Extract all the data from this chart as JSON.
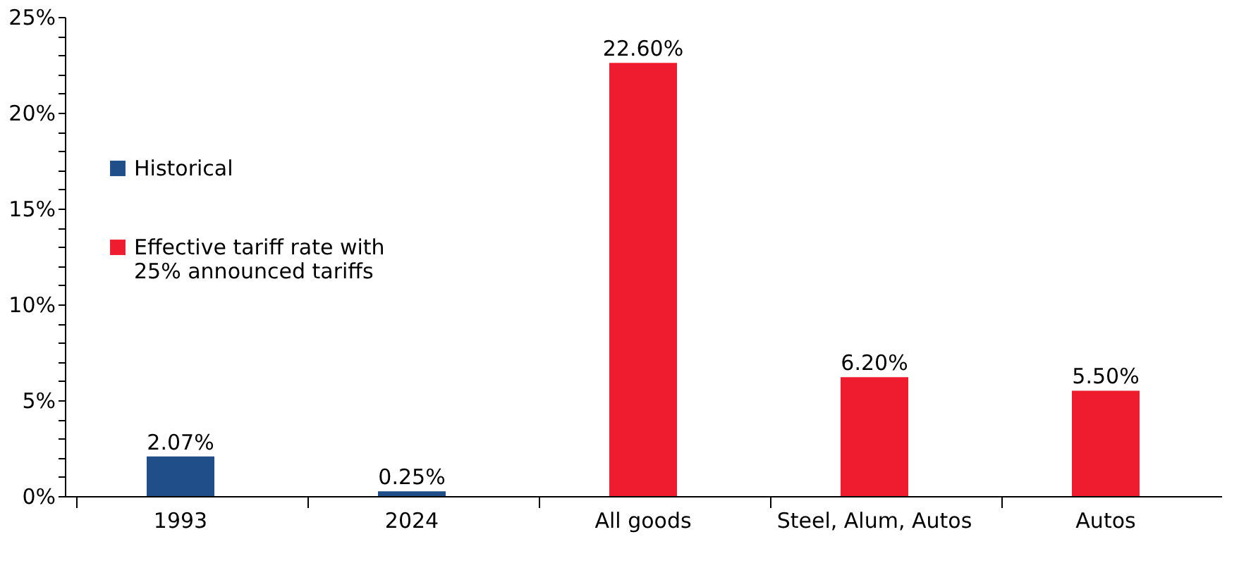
{
  "chart_data": {
    "type": "bar",
    "categories": [
      "1993",
      "2024",
      "All goods",
      "Steel, Alum, Autos",
      "Autos"
    ],
    "series": [
      {
        "name": "Historical",
        "color": "#1f4e89",
        "values": [
          2.07,
          0.25,
          null,
          null,
          null
        ],
        "value_labels": [
          "2.07%",
          "0.25%",
          null,
          null,
          null
        ]
      },
      {
        "name": "Effective tariff rate with 25% announced tariffs",
        "color": "#ee1c2e",
        "values": [
          null,
          null,
          22.6,
          6.2,
          5.5
        ],
        "value_labels": [
          null,
          null,
          "22.60%",
          "6.20%",
          "5.50%"
        ]
      }
    ],
    "ylim": [
      0,
      25
    ],
    "yticks": [
      {
        "value": 0,
        "label": "0%"
      },
      {
        "value": 1,
        "label": null
      },
      {
        "value": 2,
        "label": null
      },
      {
        "value": 3,
        "label": null
      },
      {
        "value": 4,
        "label": null
      },
      {
        "value": 5,
        "label": "5%"
      },
      {
        "value": 6,
        "label": null
      },
      {
        "value": 7,
        "label": null
      },
      {
        "value": 8,
        "label": null
      },
      {
        "value": 9,
        "label": null
      },
      {
        "value": 10,
        "label": "10%"
      },
      {
        "value": 11,
        "label": null
      },
      {
        "value": 12,
        "label": null
      },
      {
        "value": 13,
        "label": null
      },
      {
        "value": 14,
        "label": null
      },
      {
        "value": 15,
        "label": "15%"
      },
      {
        "value": 16,
        "label": null
      },
      {
        "value": 17,
        "label": null
      },
      {
        "value": 18,
        "label": null
      },
      {
        "value": 19,
        "label": null
      },
      {
        "value": 20,
        "label": "20%"
      },
      {
        "value": 21,
        "label": null
      },
      {
        "value": 22,
        "label": null
      },
      {
        "value": 23,
        "label": null
      },
      {
        "value": 24,
        "label": null
      },
      {
        "value": 25,
        "label": "25%"
      }
    ],
    "grid": false,
    "legend": "top left"
  }
}
